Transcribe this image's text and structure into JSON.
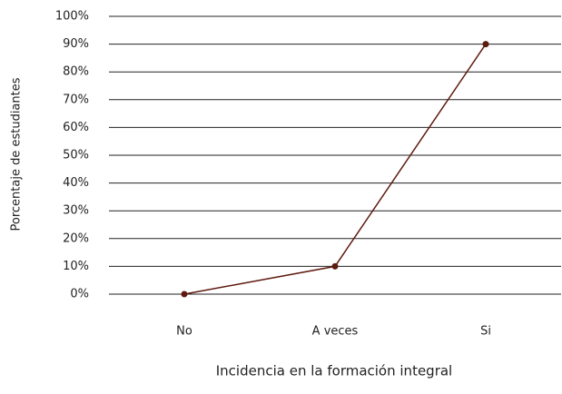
{
  "chart_data": {
    "type": "line",
    "x_label": "Incidencia en la formación integral",
    "y_label": "Porcentaje de estudiantes",
    "categories": [
      "No",
      "A veces",
      "Si"
    ],
    "series": [
      {
        "name": null,
        "color": "#5e1a0e",
        "values": [
          0,
          10,
          90
        ]
      }
    ],
    "ylim": [
      0,
      100
    ],
    "yticks": [
      {
        "value": 0,
        "label": "0%"
      },
      {
        "value": 10,
        "label": "10%"
      },
      {
        "value": 20,
        "label": "20%"
      },
      {
        "value": 30,
        "label": "30%"
      },
      {
        "value": 40,
        "label": "40%"
      },
      {
        "value": 50,
        "label": "50%"
      },
      {
        "value": 60,
        "label": "60%"
      },
      {
        "value": 70,
        "label": "70%"
      },
      {
        "value": 80,
        "label": "80%"
      },
      {
        "value": 90,
        "label": "90%"
      },
      {
        "value": 100,
        "label": "100%"
      }
    ],
    "grid": true
  }
}
